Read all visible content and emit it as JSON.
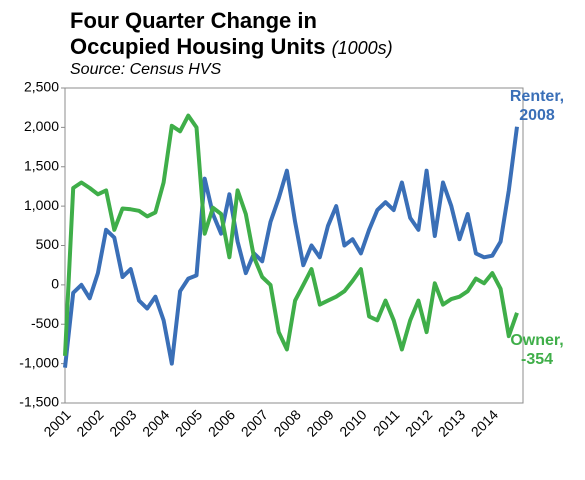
{
  "chart_data": {
    "type": "line",
    "title": "Four Quarter Change in Occupied Housing Units",
    "title_unit": "(1000s)",
    "subtitle": "Source: Census HVS",
    "categories": [
      "2001",
      null,
      null,
      null,
      "2002",
      null,
      null,
      null,
      "2003",
      null,
      null,
      null,
      "2004",
      null,
      null,
      null,
      "2005",
      null,
      null,
      null,
      "2006",
      null,
      null,
      null,
      "2007",
      null,
      null,
      null,
      "2008",
      null,
      null,
      null,
      "2009",
      null,
      null,
      null,
      "2010",
      null,
      null,
      null,
      "2011",
      null,
      null,
      null,
      "2012",
      null,
      null,
      null,
      "2013",
      null,
      null,
      null,
      "2014",
      null,
      null,
      null
    ],
    "series": [
      {
        "name": "Renter",
        "color": "#3a6fb7",
        "values": [
          -1050,
          -100,
          0,
          -170,
          150,
          700,
          600,
          100,
          200,
          -200,
          -300,
          -150,
          -450,
          -1000,
          -80,
          80,
          120,
          1350,
          900,
          650,
          1150,
          550,
          150,
          400,
          300,
          800,
          1100,
          1450,
          800,
          250,
          500,
          350,
          750,
          1000,
          500,
          580,
          400,
          700,
          950,
          1050,
          950,
          1300,
          850,
          700,
          1450,
          620,
          1300,
          1000,
          580,
          900,
          400,
          350,
          370,
          550,
          1200,
          2008
        ]
      },
      {
        "name": "Owner",
        "color": "#3fae49",
        "values": [
          -900,
          1230,
          1300,
          1230,
          1150,
          1200,
          700,
          970,
          960,
          940,
          870,
          920,
          1300,
          2020,
          1950,
          2150,
          2000,
          650,
          980,
          900,
          350,
          1200,
          900,
          350,
          100,
          0,
          -600,
          -820,
          -200,
          0,
          200,
          -250,
          -200,
          -150,
          -80,
          50,
          200,
          -400,
          -450,
          -200,
          -450,
          -820,
          -450,
          -200,
          -600,
          20,
          -250,
          -180,
          -150,
          -80,
          80,
          20,
          150,
          -50,
          -650,
          -354
        ]
      }
    ],
    "annotations": [
      {
        "text": "Renter, 2008",
        "series": 0,
        "color": "#3a6fb7"
      },
      {
        "text": "Owner, -354",
        "series": 1,
        "color": "#3fae49"
      }
    ],
    "ylim": [
      -1500,
      2500
    ],
    "yticks": [
      {
        "value": 2500,
        "label": "2,500"
      },
      {
        "value": 2000,
        "label": "2,000"
      },
      {
        "value": 1500,
        "label": "1,500"
      },
      {
        "value": 1000,
        "label": "1,000"
      },
      500,
      0,
      -500,
      {
        "value": -1000,
        "label": "-1,000"
      },
      {
        "value": -1500,
        "label": "-1,500"
      }
    ],
    "grid": false
  }
}
